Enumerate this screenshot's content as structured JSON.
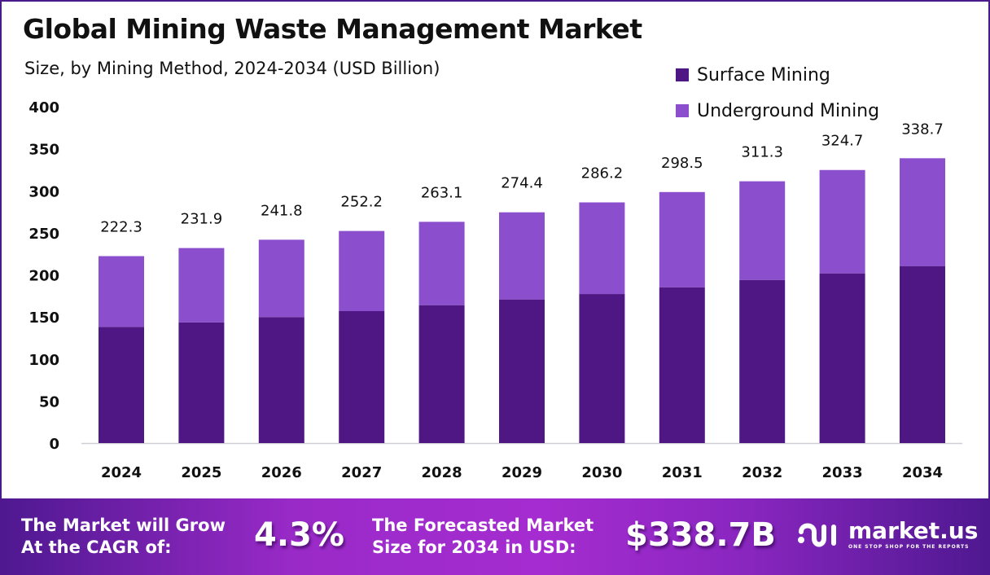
{
  "header": {
    "title": "Global Mining Waste Management Market",
    "subtitle": "Size, by Mining Method, 2024-2034 (USD Billion)"
  },
  "colors": {
    "surface": "#4f1783",
    "underground": "#8b4fcd",
    "frame": "#4a1a8a"
  },
  "chart_data": {
    "type": "bar",
    "stacked": true,
    "title": "Global Mining Waste Management Market",
    "subtitle": "Size, by Mining Method, 2024-2034 (USD Billion)",
    "xlabel": "",
    "ylabel": "",
    "ylim": [
      0,
      400
    ],
    "yticks": [
      0,
      50,
      100,
      150,
      200,
      250,
      300,
      350,
      400
    ],
    "grid": false,
    "legend_position": "top-right",
    "categories": [
      "2024",
      "2025",
      "2026",
      "2027",
      "2028",
      "2029",
      "2030",
      "2031",
      "2032",
      "2033",
      "2034"
    ],
    "series": [
      {
        "name": "Surface Mining",
        "color": "#4f1783",
        "values": [
          138.2,
          143.6,
          149.8,
          156.9,
          164.0,
          170.8,
          177.2,
          185.3,
          194.0,
          201.8,
          210.5
        ]
      },
      {
        "name": "Underground Mining",
        "color": "#8b4fcd",
        "values": [
          84.1,
          88.3,
          92.0,
          95.3,
          99.1,
          103.6,
          109.0,
          113.2,
          117.3,
          122.9,
          128.2
        ]
      }
    ],
    "totals": [
      222.3,
      231.9,
      241.8,
      252.2,
      263.1,
      274.4,
      286.2,
      298.5,
      311.3,
      324.7,
      338.7
    ],
    "total_labels": [
      "222.3",
      "231.9",
      "241.8",
      "252.2",
      "263.1",
      "274.4",
      "286.2",
      "298.5",
      "311.3",
      "324.7",
      "338.7"
    ]
  },
  "footer": {
    "cagr_text_line1": "The Market will Grow",
    "cagr_text_line2": "At the CAGR of:",
    "cagr_value": "4.3%",
    "forecast_text_line1": "The Forecasted Market",
    "forecast_text_line2": "Size for 2034 in USD:",
    "forecast_value": "$338.7B",
    "logo_name": "market.us",
    "logo_tagline": "ONE STOP SHOP FOR THE REPORTS"
  }
}
